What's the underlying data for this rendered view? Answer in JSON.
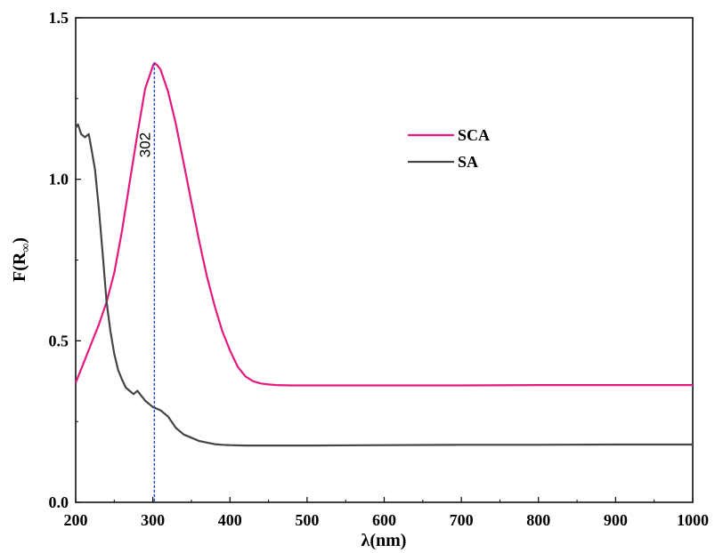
{
  "chart_data": {
    "type": "line",
    "title": "",
    "xlabel": "λ(nm)",
    "ylabel_main": "F(R",
    "ylabel_sub": "∞",
    "ylabel_close": ")",
    "xlim": [
      200,
      1000
    ],
    "ylim": [
      0.0,
      1.5
    ],
    "xticks": [
      200,
      300,
      400,
      500,
      600,
      700,
      800,
      900,
      1000
    ],
    "xtick_labels": [
      "200",
      "300",
      "400",
      "500",
      "600",
      "700",
      "800",
      "900",
      "1000"
    ],
    "yticks": [
      0.0,
      0.5,
      1.0,
      1.5
    ],
    "ytick_labels": [
      "0.0",
      "0.5",
      "1.0",
      "1.5"
    ],
    "grid": false,
    "legend_position": "upper-right",
    "annotation": {
      "label": "302",
      "x": 302,
      "color": "#1f3fbf"
    },
    "series": [
      {
        "name": "SCA",
        "color": "#e6197f",
        "x": [
          200,
          210,
          220,
          230,
          240,
          250,
          260,
          270,
          280,
          290,
          300,
          302,
          305,
          310,
          320,
          330,
          340,
          350,
          360,
          370,
          380,
          390,
          400,
          410,
          420,
          430,
          440,
          450,
          460,
          480,
          500,
          600,
          700,
          800,
          900,
          1000
        ],
        "y": [
          0.37,
          0.43,
          0.49,
          0.55,
          0.62,
          0.71,
          0.84,
          0.99,
          1.14,
          1.28,
          1.35,
          1.36,
          1.355,
          1.34,
          1.27,
          1.17,
          1.05,
          0.93,
          0.81,
          0.7,
          0.61,
          0.53,
          0.47,
          0.42,
          0.39,
          0.375,
          0.368,
          0.365,
          0.363,
          0.362,
          0.362,
          0.362,
          0.362,
          0.363,
          0.363,
          0.363
        ]
      },
      {
        "name": "SA",
        "color": "#444444",
        "x": [
          200,
          203,
          207,
          212,
          217,
          220,
          225,
          230,
          235,
          240,
          245,
          250,
          255,
          260,
          265,
          270,
          275,
          280,
          285,
          290,
          300,
          310,
          320,
          330,
          340,
          350,
          360,
          370,
          380,
          390,
          400,
          420,
          450,
          500,
          600,
          700,
          800,
          900,
          1000
        ],
        "y": [
          1.16,
          1.17,
          1.14,
          1.13,
          1.14,
          1.1,
          1.03,
          0.91,
          0.77,
          0.62,
          0.53,
          0.46,
          0.41,
          0.38,
          0.355,
          0.345,
          0.335,
          0.345,
          0.33,
          0.315,
          0.295,
          0.285,
          0.265,
          0.23,
          0.21,
          0.2,
          0.19,
          0.185,
          0.18,
          0.178,
          0.177,
          0.176,
          0.176,
          0.176,
          0.177,
          0.178,
          0.178,
          0.179,
          0.179
        ]
      }
    ]
  }
}
